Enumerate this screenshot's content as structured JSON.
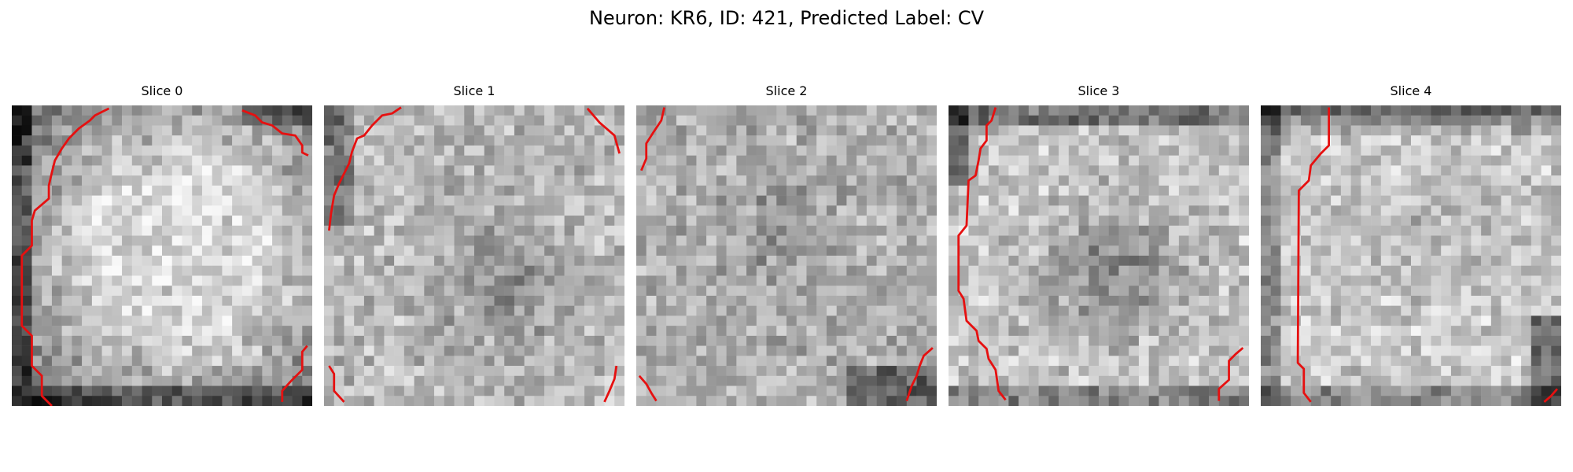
{
  "figure": {
    "title": "Neuron: KR6, ID: 421, Predicted Label: CV"
  },
  "panels": [
    {
      "title": "Slice 0",
      "seed": 11,
      "profile": "bright-center"
    },
    {
      "title": "Slice 1",
      "seed": 23,
      "profile": "dark-center"
    },
    {
      "title": "Slice 2",
      "seed": 37,
      "profile": "mottled"
    },
    {
      "title": "Slice 3",
      "seed": 41,
      "profile": "dark-blob"
    },
    {
      "title": "Slice 4",
      "seed": 53,
      "profile": "bright-top"
    }
  ],
  "contour_color": "#e61010"
}
